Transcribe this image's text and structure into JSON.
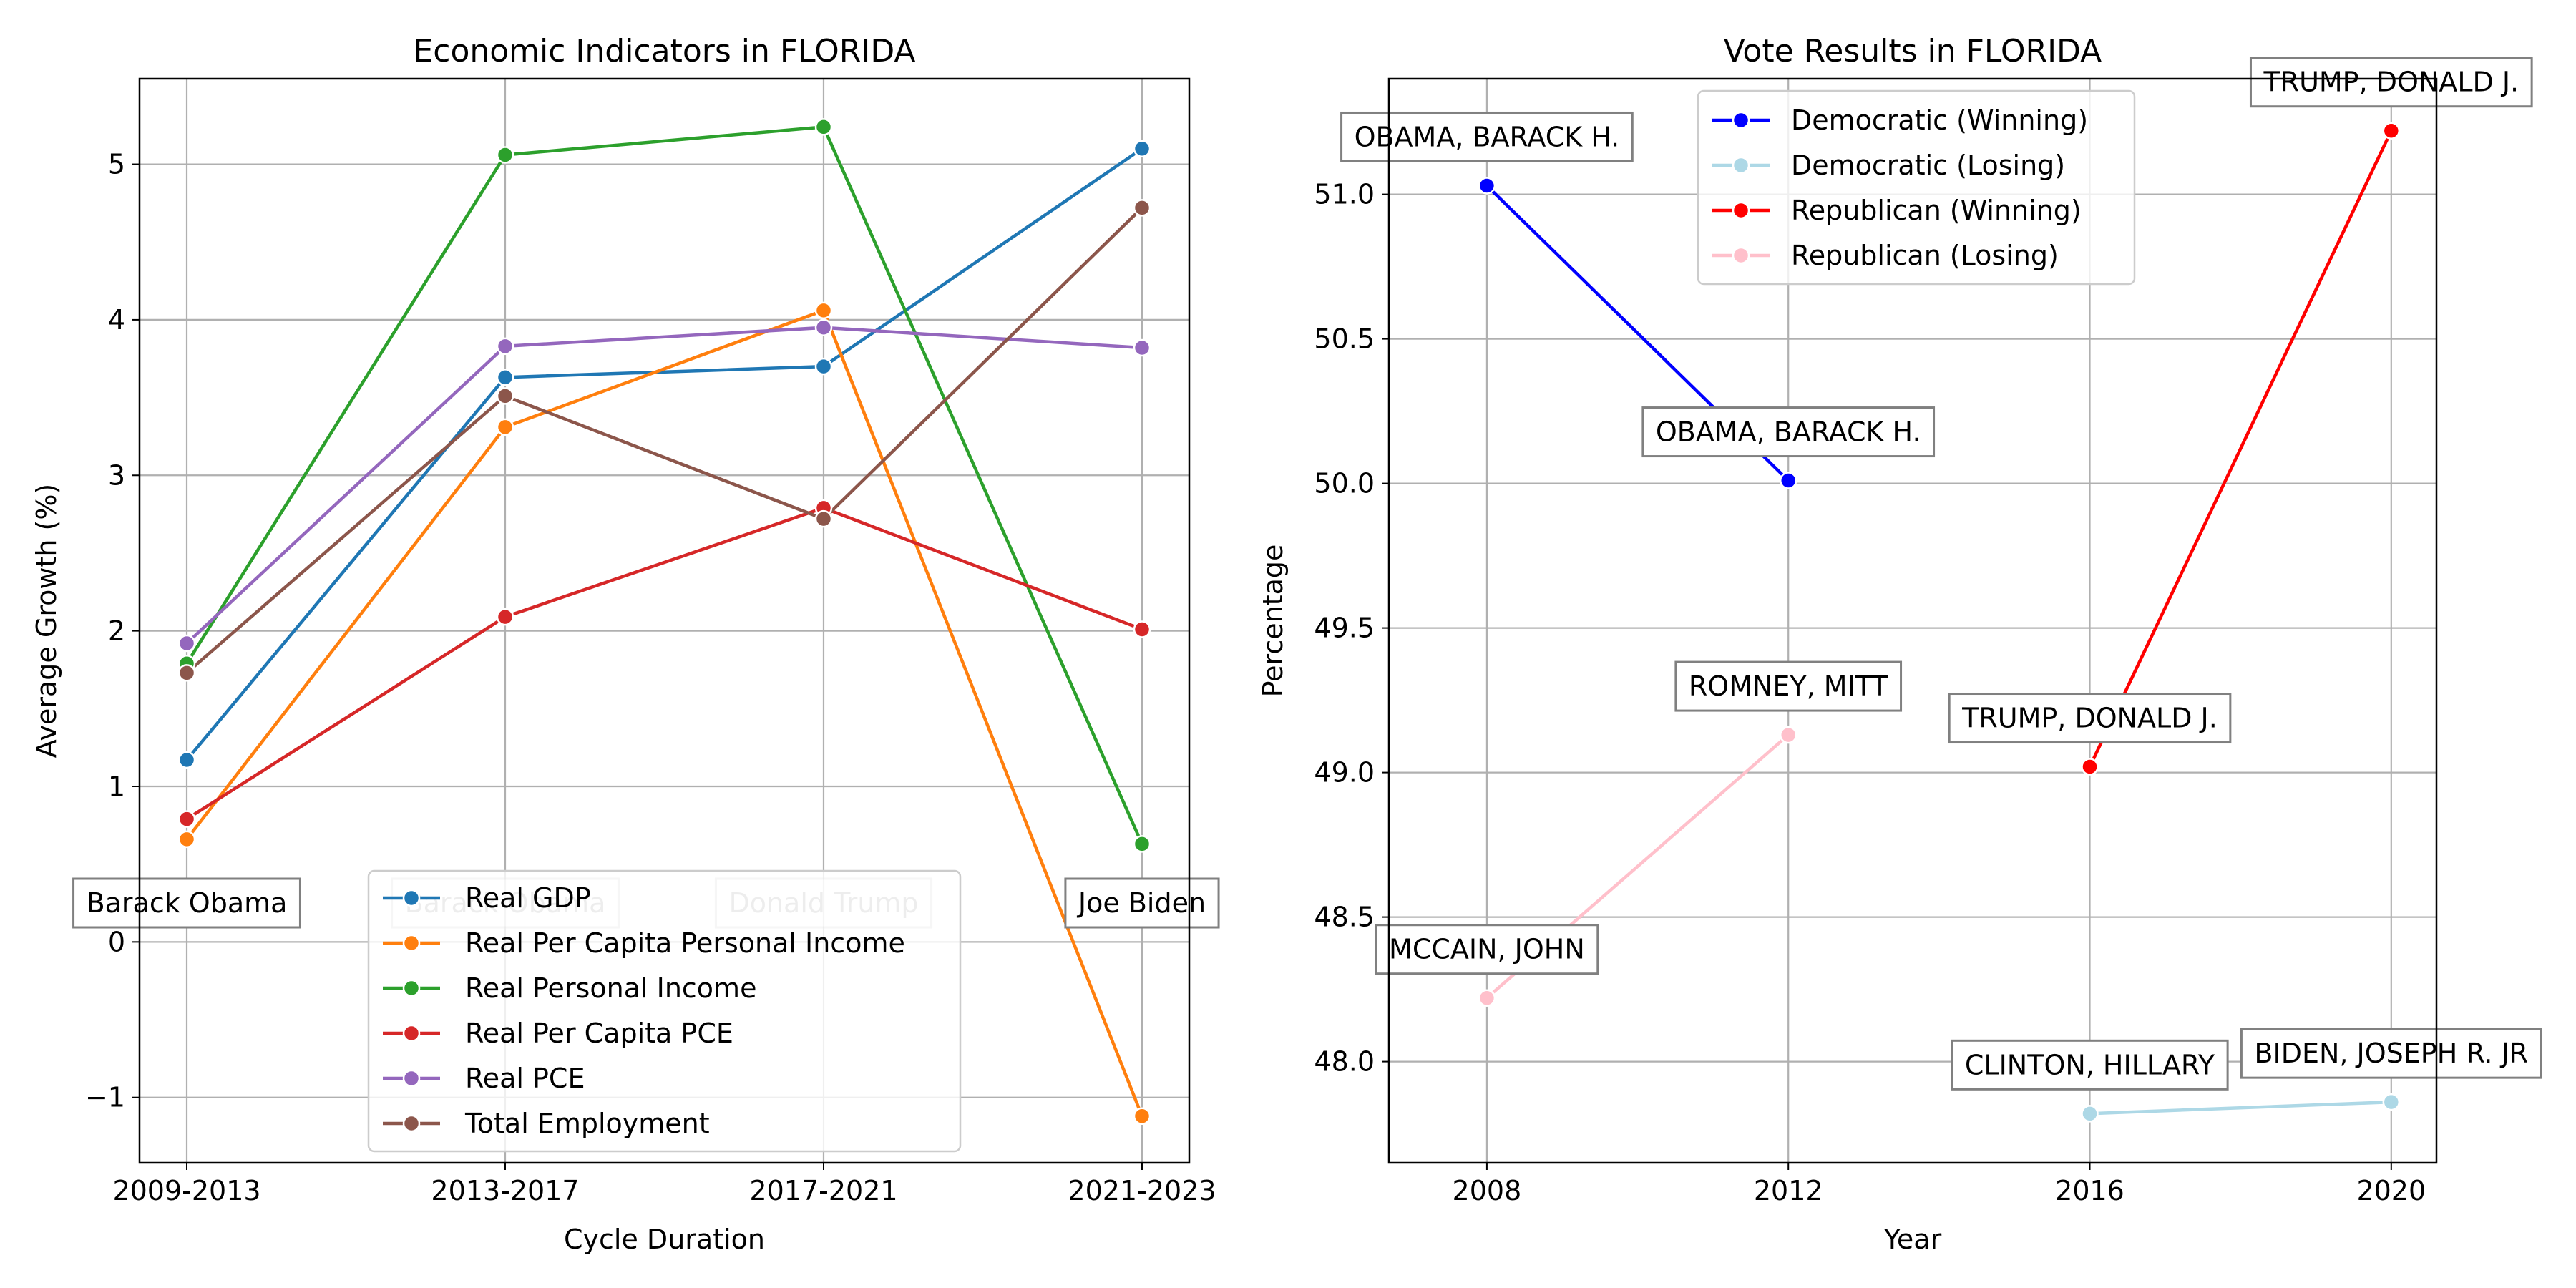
{
  "chart_data": [
    {
      "type": "line",
      "title": "Economic Indicators in FLORIDA",
      "xlabel": "Cycle Duration",
      "ylabel": "Average Growth (%)",
      "categories": [
        "2009-2013",
        "2013-2017",
        "2017-2021",
        "2021-2023"
      ],
      "ylim": [
        -1.42,
        5.55
      ],
      "yticks": [
        -1,
        0,
        1,
        2,
        3,
        4,
        5
      ],
      "ytick_labels": [
        "−1",
        "0",
        "1",
        "2",
        "3",
        "4",
        "5"
      ],
      "grid": true,
      "legend_position": "bottom-center",
      "series": [
        {
          "name": "Real GDP",
          "color": "#1f77b4",
          "values": [
            1.17,
            3.63,
            3.7,
            5.1
          ]
        },
        {
          "name": "Real Per Capita Personal Income",
          "color": "#ff7f0e",
          "values": [
            0.66,
            3.31,
            4.06,
            -1.12
          ]
        },
        {
          "name": "Real Personal Income",
          "color": "#2ca02c",
          "values": [
            1.79,
            5.06,
            5.24,
            0.63
          ]
        },
        {
          "name": "Real Per Capita PCE",
          "color": "#d62728",
          "values": [
            0.79,
            2.09,
            2.79,
            2.01
          ]
        },
        {
          "name": "Real PCE",
          "color": "#9467bd",
          "values": [
            1.92,
            3.83,
            3.95,
            3.82
          ]
        },
        {
          "name": "Total Employment",
          "color": "#8c564b",
          "values": [
            1.73,
            3.51,
            2.72,
            4.72
          ]
        }
      ],
      "annotations": [
        {
          "text": "Barack Obama",
          "x": "2009-2013",
          "y": 0.25,
          "alpha": 1
        },
        {
          "text": "Barack Obama",
          "x": "2013-2017",
          "y": 0.25,
          "alpha": 0.35
        },
        {
          "text": "Donald Trump",
          "x": "2017-2021",
          "y": 0.25,
          "alpha": 0.35
        },
        {
          "text": "Joe Biden",
          "x": "2021-2023",
          "y": 0.25,
          "alpha": 1
        }
      ]
    },
    {
      "type": "line",
      "title": "Vote Results in FLORIDA",
      "xlabel": "Year",
      "ylabel": "Percentage",
      "xticks": [
        2008,
        2012,
        2016,
        2020
      ],
      "xlim": [
        2006.7,
        2020.6
      ],
      "ylim": [
        47.65,
        51.4
      ],
      "yticks": [
        48.0,
        48.5,
        49.0,
        49.5,
        50.0,
        50.5,
        51.0
      ],
      "ytick_labels": [
        "48.0",
        "48.5",
        "49.0",
        "49.5",
        "50.0",
        "50.5",
        "51.0"
      ],
      "grid": true,
      "legend_position": "top-center",
      "series": [
        {
          "name": "Democratic (Winning)",
          "color": "#0000ff",
          "x": [
            2008,
            2012
          ],
          "values": [
            51.03,
            50.01
          ]
        },
        {
          "name": "Democratic (Losing)",
          "color": "#add8e6",
          "x": [
            2016,
            2020
          ],
          "values": [
            47.82,
            47.86
          ]
        },
        {
          "name": "Republican (Winning)",
          "color": "#ff0000",
          "x": [
            2016,
            2020
          ],
          "values": [
            49.02,
            51.22
          ]
        },
        {
          "name": "Republican (Losing)",
          "color": "#ffc0cb",
          "x": [
            2008,
            2012
          ],
          "values": [
            48.22,
            49.13
          ]
        }
      ],
      "annotations": [
        {
          "text": "OBAMA, BARACK H.",
          "x": 2008,
          "y": 51.03
        },
        {
          "text": "OBAMA, BARACK H.",
          "x": 2012,
          "y": 50.01
        },
        {
          "text": "MCCAIN, JOHN",
          "x": 2008,
          "y": 48.22
        },
        {
          "text": "ROMNEY, MITT",
          "x": 2012,
          "y": 49.13
        },
        {
          "text": "TRUMP, DONALD J.",
          "x": 2016,
          "y": 49.02
        },
        {
          "text": "TRUMP, DONALD J.",
          "x": 2020,
          "y": 51.22
        },
        {
          "text": "CLINTON, HILLARY",
          "x": 2016,
          "y": 47.82
        },
        {
          "text": "BIDEN, JOSEPH R. JR",
          "x": 2020,
          "y": 47.86
        }
      ]
    }
  ]
}
